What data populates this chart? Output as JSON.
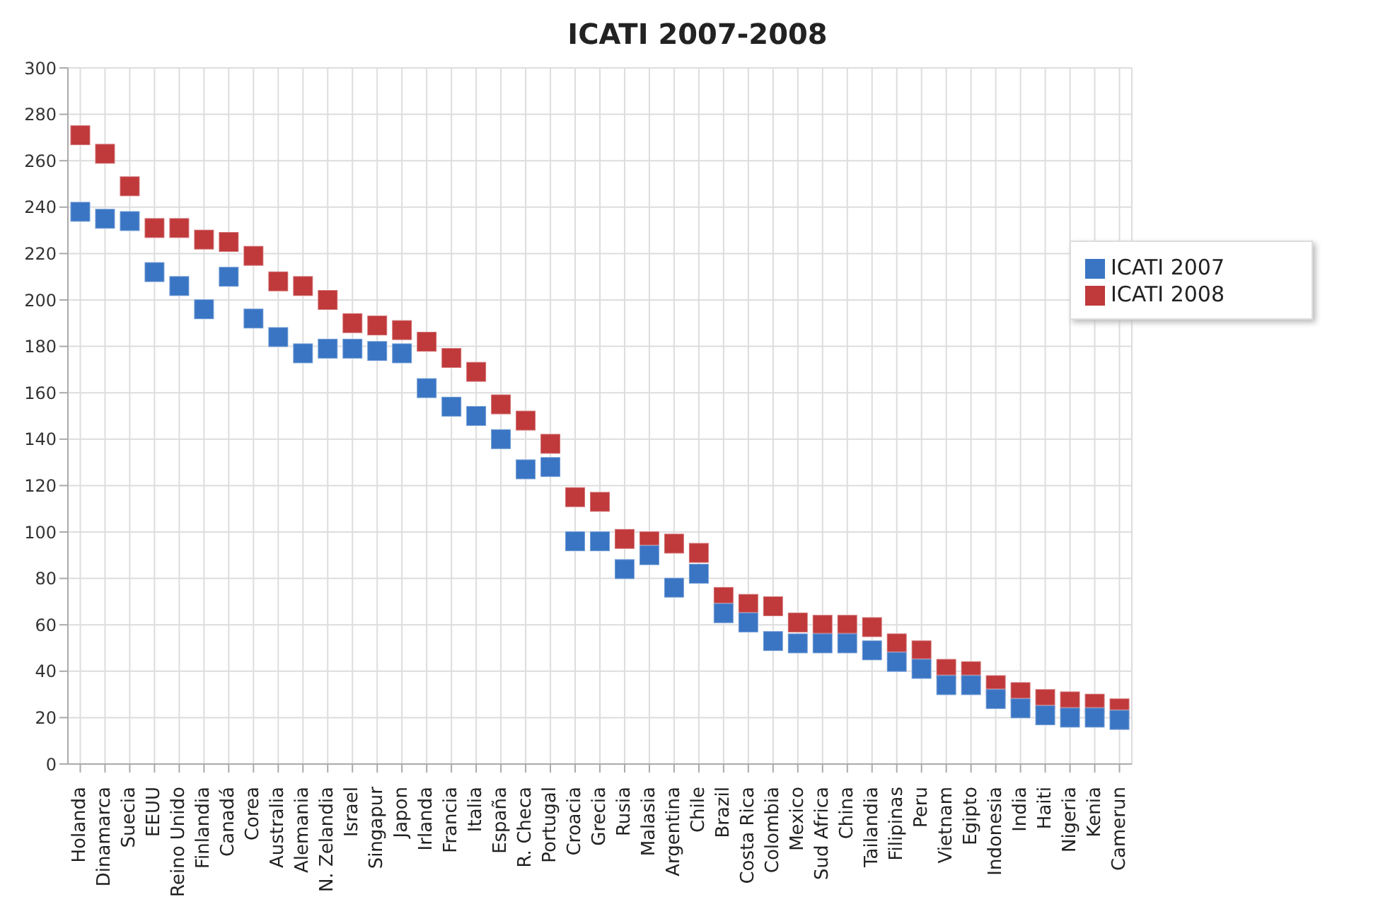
{
  "chart_data": {
    "type": "scatter",
    "title": "ICATI 2007-2008",
    "categories": [
      "Holanda",
      "Dinamarca",
      "Suecia",
      "EEUU",
      "Reino Unido",
      "Finlandia",
      "Canadá",
      "Corea",
      "Australia",
      "Alemania",
      "N. Zelandia",
      "Israel",
      "Singapur",
      "Japon",
      "Irlanda",
      "Francia",
      "Italia",
      "España",
      "R. Checa",
      "Portugal",
      "Croacia",
      "Grecia",
      "Rusia",
      "Malasia",
      "Argentina",
      "Chile",
      "Brazil",
      "Costa Rica",
      "Colombia",
      "Mexico",
      "Sud Africa",
      "China",
      "Tailandia",
      "Filipinas",
      "Peru",
      "Vietnam",
      "Egipto",
      "Indonesia",
      "India",
      "Haiti",
      "Nigeria",
      "Kenia",
      "Camerun"
    ],
    "series": [
      {
        "name": "ICATI 2008",
        "color": "#c0393b",
        "values": [
          271,
          263,
          249,
          231,
          231,
          226,
          225,
          219,
          208,
          206,
          200,
          190,
          189,
          187,
          182,
          175,
          169,
          155,
          148,
          138,
          115,
          113,
          97,
          96,
          95,
          91,
          72,
          69,
          68,
          61,
          60,
          60,
          59,
          52,
          49,
          41,
          40,
          34,
          31,
          28,
          27,
          26,
          24
        ]
      },
      {
        "name": "ICATI 2007",
        "color": "#3a75c4",
        "values": [
          238,
          235,
          234,
          212,
          206,
          196,
          210,
          192,
          184,
          177,
          179,
          179,
          178,
          177,
          162,
          154,
          150,
          140,
          127,
          128,
          96,
          96,
          84,
          90,
          76,
          82,
          65,
          61,
          53,
          52,
          52,
          52,
          49,
          44,
          41,
          34,
          34,
          28,
          24,
          21,
          20,
          20,
          19
        ]
      }
    ],
    "ylim": [
      0,
      300
    ],
    "yticks": [
      0,
      20,
      40,
      60,
      80,
      100,
      120,
      140,
      160,
      180,
      200,
      220,
      240,
      260,
      280,
      300
    ],
    "grid": true,
    "legend": "top right",
    "marker": "square"
  }
}
